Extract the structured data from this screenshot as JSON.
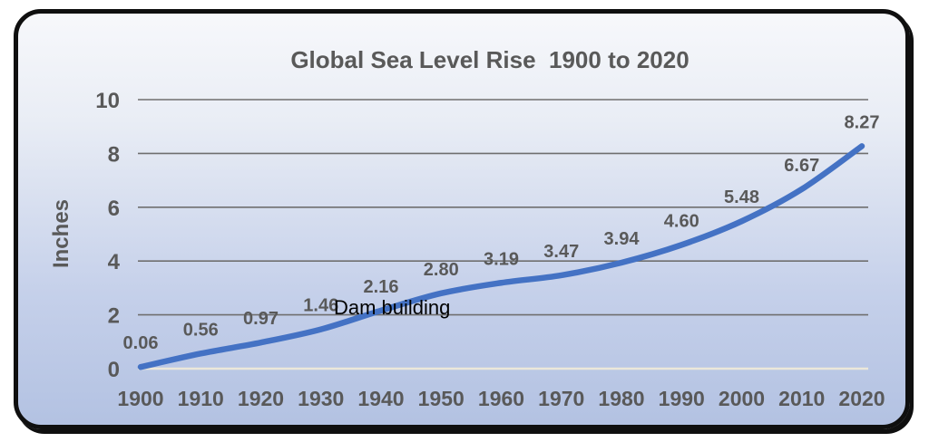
{
  "window": {
    "background": "#ffffff"
  },
  "frame": {
    "border_color": "#0f0f0f",
    "bg_top": "#f7f8fb",
    "bg_upper": "#e9edf5",
    "bg_lower": "#c5d0ea",
    "bg_bottom": "#b3c2e2"
  },
  "chart_data": {
    "type": "line",
    "title": "Global Sea Level Rise  1900 to 2020",
    "xlabel": "",
    "ylabel": "Inches",
    "categories": [
      "1900",
      "1910",
      "1920",
      "1930",
      "1940",
      "1950",
      "1960",
      "1970",
      "1980",
      "1990",
      "2000",
      "2010",
      "2020"
    ],
    "values": [
      0.06,
      0.56,
      0.97,
      1.46,
      2.16,
      2.8,
      3.19,
      3.47,
      3.94,
      4.6,
      5.48,
      6.67,
      8.27
    ],
    "point_labels": [
      "0.06",
      "0.56",
      "0.97",
      "1.46",
      "2.16",
      "2.80",
      "3.19",
      "3.47",
      "3.94",
      "4.60",
      "5.48",
      "6.67",
      "8.27"
    ],
    "yticks": [
      0,
      2,
      4,
      6,
      8,
      10
    ],
    "ylim": [
      0,
      10
    ],
    "grid": "horizontal",
    "legend": "none",
    "smooth_line": true,
    "annotation": "Dam building",
    "colors": {
      "series_line": "#4472c4",
      "data_label": "#595959",
      "tick_label": "#595959",
      "title": "#595959",
      "axis_title": "#595959",
      "gridline": "#6f6f6f",
      "zero_baseline": "#ece7da",
      "annotation_text": "#000000"
    }
  }
}
